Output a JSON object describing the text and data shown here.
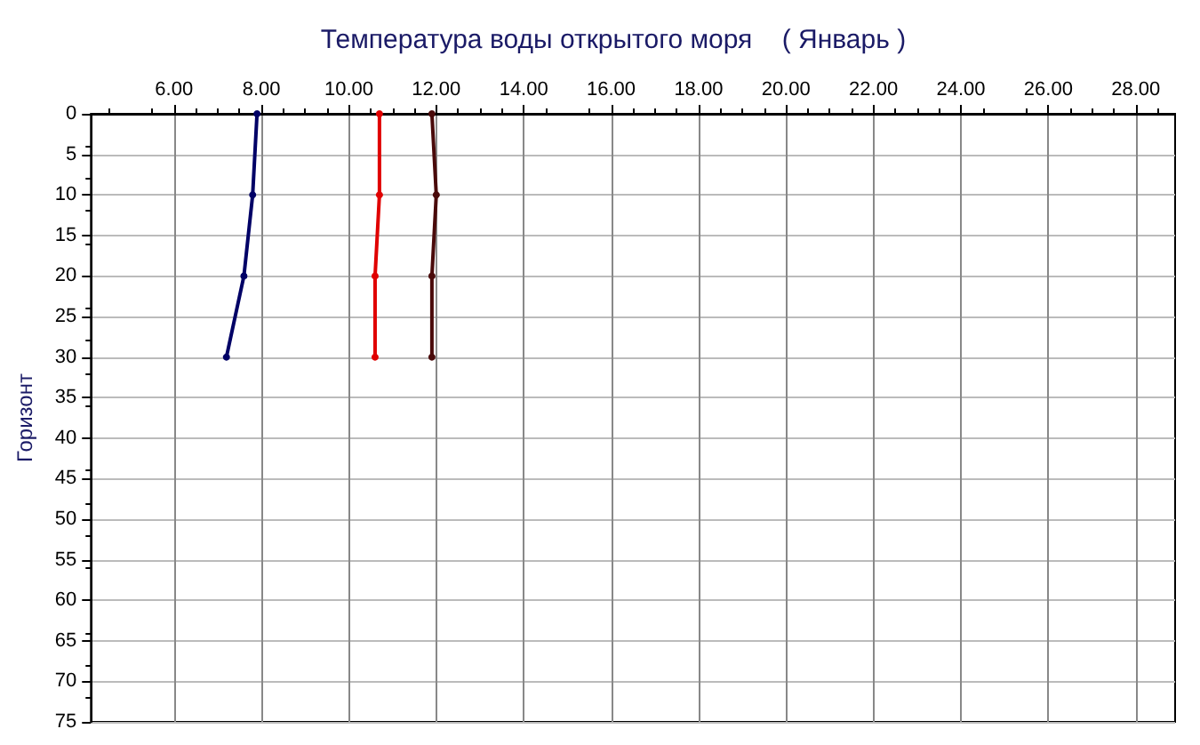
{
  "chart_data": {
    "type": "line",
    "title": "Температура воды открытого моря    ( Январь )",
    "ylabel": "Горизонт",
    "series": [
      {
        "color": "#000066",
        "x": [
          7.9,
          7.8,
          7.6,
          7.2
        ],
        "values": [
          0,
          10,
          20,
          30
        ]
      },
      {
        "color": "#e00000",
        "x": [
          10.7,
          10.7,
          10.6,
          10.6
        ],
        "values": [
          0,
          10,
          20,
          30
        ]
      },
      {
        "color": "#4a0a0a",
        "x": [
          11.9,
          12.0,
          11.9,
          11.9
        ],
        "values": [
          0,
          10,
          20,
          30
        ]
      }
    ],
    "xlim": [
      4.1,
      28.9
    ],
    "xticks": [
      {
        "value": 6,
        "label": "6.00"
      },
      {
        "value": 8,
        "label": "8.00"
      },
      {
        "value": 10,
        "label": "10.00"
      },
      {
        "value": 12,
        "label": "12.00"
      },
      {
        "value": 14,
        "label": "14.00"
      },
      {
        "value": 16,
        "label": "16.00"
      },
      {
        "value": 18,
        "label": "18.00"
      },
      {
        "value": 20,
        "label": "20.00"
      },
      {
        "value": 22,
        "label": "22.00"
      },
      {
        "value": 24,
        "label": "24.00"
      },
      {
        "value": 26,
        "label": "26.00"
      },
      {
        "value": 28,
        "label": "28.00"
      }
    ],
    "ylim": [
      75,
      0
    ],
    "yticks": [
      0,
      5,
      10,
      15,
      20,
      25,
      30,
      35,
      40,
      45,
      50,
      55,
      60,
      65,
      70,
      75
    ],
    "grid": true,
    "marker": "circle",
    "line_style": "solid"
  }
}
